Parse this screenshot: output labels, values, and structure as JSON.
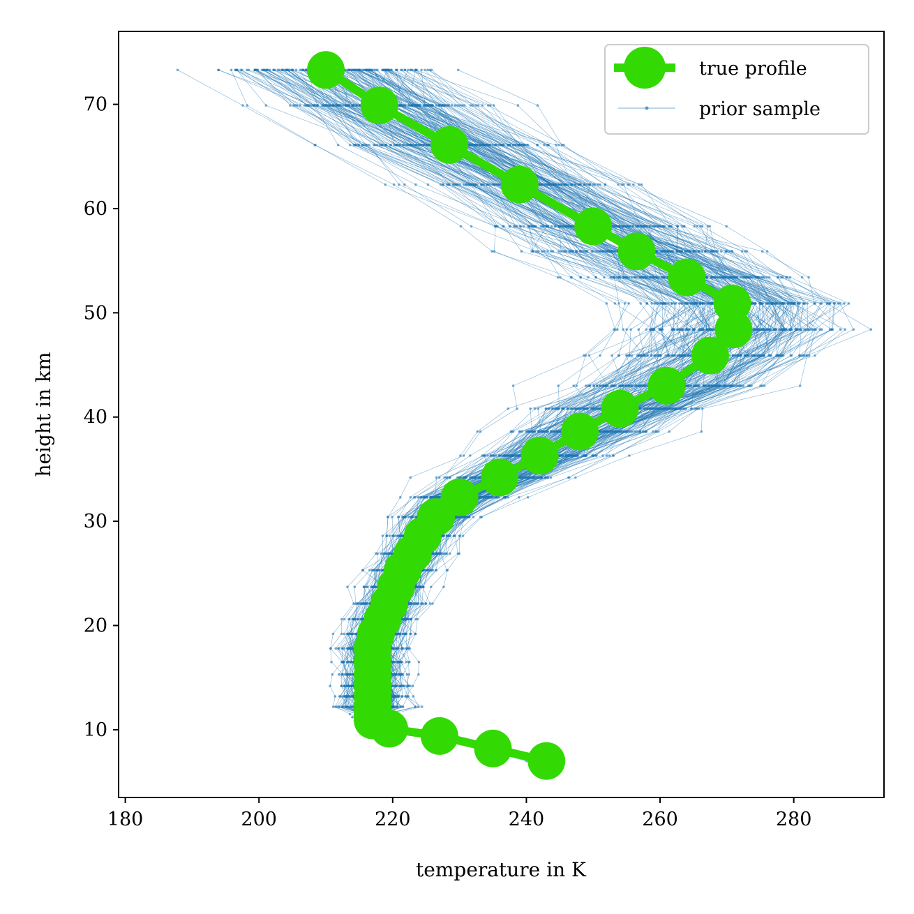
{
  "chart_data": {
    "type": "line",
    "title": "",
    "xlabel": "temperature in K",
    "ylabel": "height in km",
    "xlim": [
      179,
      293.5
    ],
    "ylim": [
      3.5,
      77
    ],
    "xticks": [
      180,
      200,
      220,
      240,
      260,
      280
    ],
    "yticks": [
      10,
      20,
      30,
      40,
      50,
      60,
      70
    ],
    "legend_position": "top-right",
    "grid": false,
    "colors": {
      "true_profile": "#33d903",
      "prior_sample": "#1f77b4"
    },
    "series": [
      {
        "name": "true profile",
        "style": "line-with-large-circle-markers",
        "x": [
          210.0,
          218.0,
          228.5,
          239.0,
          250.0,
          256.5,
          264.0,
          270.8,
          271.0,
          267.5,
          261.0,
          254.0,
          248.0,
          242.0,
          236.0,
          230.0,
          226.5,
          224.5,
          223.0,
          221.5,
          220.5,
          219.5,
          218.5,
          217.5,
          217.0,
          217.0,
          217.0,
          217.0,
          217.0,
          217.0,
          217.0,
          217.0,
          217.0,
          217.0,
          219.5,
          227.0,
          235.0,
          243.0
        ],
        "y": [
          73.3,
          69.9,
          66.1,
          62.3,
          58.3,
          55.9,
          53.4,
          50.9,
          48.4,
          45.9,
          43.0,
          40.8,
          38.6,
          36.3,
          34.2,
          32.3,
          30.4,
          28.6,
          26.9,
          25.3,
          23.7,
          22.1,
          20.6,
          19.2,
          17.8,
          16.5,
          15.3,
          14.2,
          13.2,
          12.2,
          11.5,
          11.2,
          11.0,
          10.9,
          10.1,
          9.4,
          8.2,
          7.0
        ]
      },
      {
        "name": "prior sample",
        "style": "thin-line-with-small-dots",
        "sample_count": 200
      }
    ]
  }
}
